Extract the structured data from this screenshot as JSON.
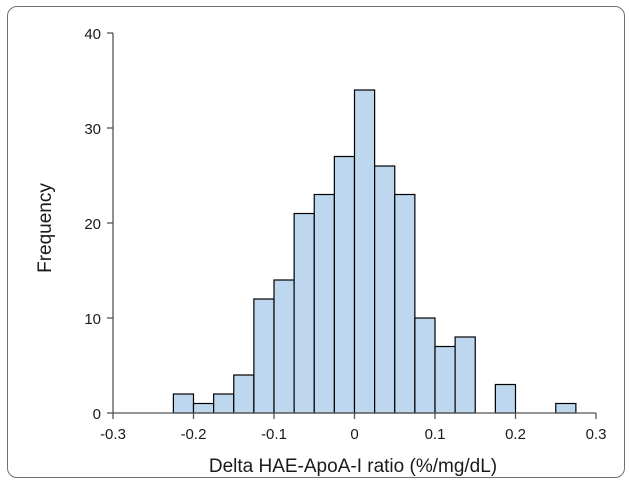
{
  "chart_data": {
    "type": "bar",
    "title": "",
    "xlabel": "Delta HAE-ApoA-I ratio (%/mg/dL)",
    "ylabel": "Frequency",
    "xlim": [
      -0.3,
      0.3
    ],
    "ylim": [
      0,
      40
    ],
    "x_ticks": [
      "-0.3",
      "-0.2",
      "-0.1",
      "0",
      "0.1",
      "0.2",
      "0.3"
    ],
    "y_ticks": [
      "0",
      "10",
      "20",
      "30",
      "40"
    ],
    "bin_width": 0.025,
    "bin_starts": [
      -0.225,
      -0.2,
      -0.175,
      -0.15,
      -0.125,
      -0.1,
      -0.075,
      -0.05,
      -0.025,
      0,
      0.025,
      0.05,
      0.075,
      0.1,
      0.125,
      0.175,
      0.25
    ],
    "values": [
      2,
      1,
      2,
      4,
      12,
      14,
      21,
      23,
      27,
      34,
      26,
      23,
      10,
      7,
      8,
      3,
      1
    ],
    "grid": false,
    "bar_color": "#bdd7ee",
    "bar_edge_color": "#000000"
  }
}
